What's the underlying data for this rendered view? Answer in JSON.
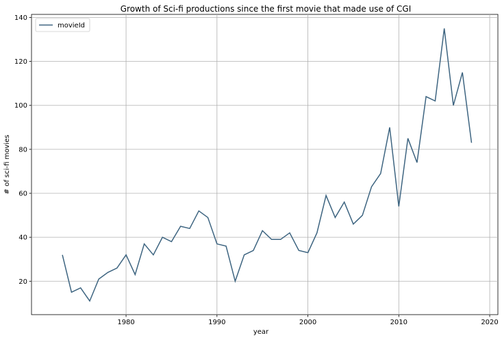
{
  "chart_data": {
    "type": "line",
    "title": "Growth of Sci-fi productions since the first movie that made use of CGI",
    "xlabel": "year",
    "ylabel": "# of sci-fi movies",
    "xlim": [
      1969.6,
      2020.9
    ],
    "ylim": [
      4.8,
      141.4
    ],
    "xticks": [
      1980,
      1990,
      2000,
      2010,
      2020
    ],
    "yticks": [
      20,
      40,
      60,
      80,
      100,
      120,
      140
    ],
    "grid": true,
    "legend_position": "top-left",
    "line_color": "#3d6480",
    "series": [
      {
        "name": "movieId",
        "x": [
          1973,
          1974,
          1975,
          1976,
          1977,
          1978,
          1979,
          1980,
          1981,
          1982,
          1983,
          1984,
          1985,
          1986,
          1987,
          1988,
          1989,
          1990,
          1991,
          1992,
          1993,
          1994,
          1995,
          1996,
          1997,
          1998,
          1999,
          2000,
          2001,
          2002,
          2003,
          2004,
          2005,
          2006,
          2007,
          2008,
          2009,
          2010,
          2011,
          2012,
          2013,
          2014,
          2015,
          2016,
          2017,
          2018
        ],
        "values": [
          32,
          15,
          17,
          11,
          21,
          24,
          26,
          32,
          23,
          37,
          32,
          40,
          38,
          45,
          44,
          52,
          49,
          37,
          36,
          20,
          32,
          34,
          43,
          39,
          39,
          42,
          34,
          33,
          42,
          59,
          49,
          56,
          46,
          50,
          63,
          69,
          90,
          54,
          85,
          74,
          104,
          102,
          135,
          100,
          115,
          83
        ]
      }
    ]
  }
}
